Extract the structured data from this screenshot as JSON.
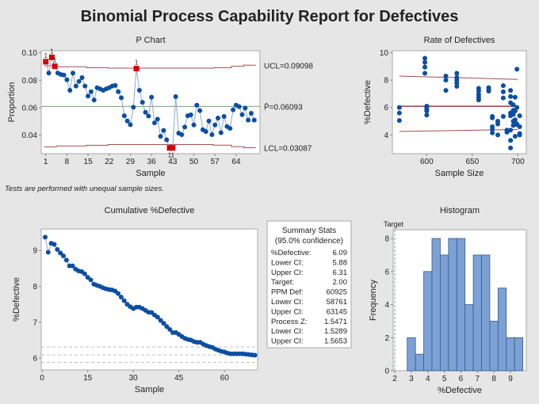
{
  "title": "Binomial Process Capability Report for Defectives",
  "footnote": "Tests are performed with unequal sample sizes.",
  "colors": {
    "point": "#0b4ea2",
    "line": "#8da6d4",
    "out_of_control": "#d40000",
    "limit": "#a05050",
    "center": "#6aa86a",
    "bar": "#7ba1d6",
    "bar_edge": "#3d5a80",
    "dashed": "#c0c0c0"
  },
  "chart_data": [
    {
      "type": "line",
      "title": "P Chart",
      "xlabel": "Sample",
      "ylabel": "Proportion",
      "xticks": [
        1,
        8,
        15,
        22,
        29,
        36,
        43,
        50,
        57,
        64
      ],
      "yticks": [
        "0.04",
        "0.06",
        "0.08",
        "0.10"
      ],
      "xlim": [
        -0.5,
        71.9
      ],
      "ylim": [
        0.0266,
        0.1015
      ],
      "center": 0.06093,
      "center_label": "P̄=0.06093",
      "ucl_label": "UCL=0.09098",
      "lcl_label": "LCL=0.03087",
      "ucl_steps": [
        [
          1,
          0.0905
        ],
        [
          5,
          0.0898
        ],
        [
          15,
          0.0892
        ],
        [
          22,
          0.0888
        ],
        [
          57,
          0.0892
        ],
        [
          63,
          0.0902
        ],
        [
          67,
          0.091
        ]
      ],
      "lcl_steps": [
        [
          1,
          0.0316
        ],
        [
          5,
          0.0322
        ],
        [
          15,
          0.0327
        ],
        [
          22,
          0.0332
        ],
        [
          57,
          0.0328
        ],
        [
          63,
          0.0317
        ],
        [
          67,
          0.0309
        ]
      ],
      "failed_test_marker": "1",
      "flagged_samples": [
        1,
        3,
        4,
        31,
        42,
        43
      ],
      "values": [
        0.0935,
        0.0852,
        0.0967,
        0.0902,
        0.0852,
        0.0842,
        0.0838,
        0.0804,
        0.0727,
        0.0852,
        0.0758,
        0.0792,
        0.0819,
        0.0758,
        0.0685,
        0.0717,
        0.0656,
        0.0746,
        0.0737,
        0.0727,
        0.0737,
        0.0746,
        0.0758,
        0.0762,
        0.0717,
        0.0673,
        0.0542,
        0.0504,
        0.0477,
        0.0604,
        0.0885,
        0.0727,
        0.064,
        0.0567,
        0.054,
        0.0677,
        0.049,
        0.0517,
        0.0392,
        0.0435,
        0.0367,
        0.0308,
        0.0308,
        0.0681,
        0.0415,
        0.0404,
        0.046,
        0.0542,
        0.0548,
        0.0475,
        0.0619,
        0.0579,
        0.044,
        0.0427,
        0.0504,
        0.0404,
        0.0475,
        0.0525,
        0.0419,
        0.0537,
        0.0463,
        0.045,
        0.0585,
        0.0619,
        0.0608,
        0.055,
        0.0598,
        0.051,
        0.056,
        0.051
      ]
    },
    {
      "type": "scatter",
      "title": "Rate of Defectives",
      "xlabel": "Sample Size",
      "ylabel": "%Defective",
      "xticks": [
        600,
        650,
        700
      ],
      "yticks": [
        4,
        6,
        8,
        10
      ],
      "xlim": [
        562.3,
        709.3
      ],
      "ylim": [
        2.63,
        10.15
      ],
      "center": 6.09,
      "upper_limit": [
        [
          570,
          8.3
        ],
        [
          700,
          8.05
        ]
      ],
      "lower_limit": [
        [
          570,
          4.25
        ],
        [
          700,
          4.4
        ]
      ],
      "points": [
        [
          570,
          6.0
        ],
        [
          570,
          5.6
        ],
        [
          570,
          5.05
        ],
        [
          598,
          9.6
        ],
        [
          598,
          9.3
        ],
        [
          598,
          8.95
        ],
        [
          598,
          8.5
        ],
        [
          600,
          6.1
        ],
        [
          600,
          6.0
        ],
        [
          600,
          5.85
        ],
        [
          600,
          5.75
        ],
        [
          600,
          5.45
        ],
        [
          621,
          8.3
        ],
        [
          621,
          8.0
        ],
        [
          621,
          7.25
        ],
        [
          633,
          8.5
        ],
        [
          633,
          8.2
        ],
        [
          633,
          8.0
        ],
        [
          633,
          7.8
        ],
        [
          633,
          7.55
        ],
        [
          657,
          7.4
        ],
        [
          657,
          7.2
        ],
        [
          657,
          6.95
        ],
        [
          657,
          6.75
        ],
        [
          657,
          6.55
        ],
        [
          668,
          7.45
        ],
        [
          668,
          7.3
        ],
        [
          668,
          7.2
        ],
        [
          672,
          5.35
        ],
        [
          672,
          5.25
        ],
        [
          672,
          4.6
        ],
        [
          672,
          4.4
        ],
        [
          672,
          4.15
        ],
        [
          678,
          5.0
        ],
        [
          678,
          4.8
        ],
        [
          678,
          4.0
        ],
        [
          684,
          7.6
        ],
        [
          684,
          7.15
        ],
        [
          684,
          6.7
        ],
        [
          684,
          5.35
        ],
        [
          688,
          4.35
        ],
        [
          688,
          4.2
        ],
        [
          692,
          7.25
        ],
        [
          692,
          6.8
        ],
        [
          692,
          6.35
        ],
        [
          692,
          5.6
        ],
        [
          692,
          5.4
        ],
        [
          692,
          4.35
        ],
        [
          692,
          3.6
        ],
        [
          692,
          3.05
        ],
        [
          695,
          6.2
        ],
        [
          695,
          5.8
        ],
        [
          695,
          5.5
        ],
        [
          695,
          5.0
        ],
        [
          695,
          4.7
        ],
        [
          697,
          6.75
        ],
        [
          697,
          5.75
        ],
        [
          697,
          5.1
        ],
        [
          697,
          4.9
        ],
        [
          697,
          4.85
        ],
        [
          697,
          3.9
        ],
        [
          699,
          8.8
        ],
        [
          699,
          6.0
        ],
        [
          699,
          4.8
        ],
        [
          699,
          4.75
        ],
        [
          702,
          5.4
        ],
        [
          702,
          4.6
        ],
        [
          702,
          4.1
        ],
        [
          702,
          4.0
        ]
      ]
    },
    {
      "type": "line",
      "title": "Cumulative %Defective",
      "xlabel": "Sample",
      "ylabel": "%Defective",
      "xticks": [
        0,
        15,
        30,
        45,
        60
      ],
      "yticks": [
        6,
        7,
        8,
        9
      ],
      "xlim": [
        -0.3,
        70.9
      ],
      "ylim": [
        5.67,
        9.6
      ],
      "reference_lines": [
        6.31,
        6.09,
        5.88
      ],
      "values": [
        9.37,
        8.95,
        9.2,
        9.17,
        9.03,
        8.93,
        8.85,
        8.73,
        8.57,
        8.57,
        8.48,
        8.43,
        8.41,
        8.35,
        8.25,
        8.18,
        8.06,
        8.03,
        8.0,
        7.96,
        7.93,
        7.91,
        7.9,
        7.87,
        7.8,
        7.7,
        7.6,
        7.5,
        7.43,
        7.38,
        7.42,
        7.42,
        7.38,
        7.33,
        7.28,
        7.27,
        7.2,
        7.14,
        7.05,
        6.97,
        6.88,
        6.8,
        6.71,
        6.71,
        6.66,
        6.6,
        6.55,
        6.52,
        6.5,
        6.46,
        6.44,
        6.44,
        6.39,
        6.35,
        6.32,
        6.3,
        6.25,
        6.22,
        6.19,
        6.17,
        6.14,
        6.12,
        6.12,
        6.12,
        6.12,
        6.12,
        6.11,
        6.1,
        6.09,
        6.08
      ]
    },
    {
      "type": "bar",
      "title": "Histogram",
      "xlabel": "%Defective",
      "ylabel": "Frequency",
      "xticks": [
        2,
        3,
        4,
        5,
        6,
        7,
        8,
        9
      ],
      "yticks": [
        0,
        2,
        4,
        6,
        8
      ],
      "xlim": [
        1.9,
        9.96
      ],
      "ylim": [
        0,
        8.53
      ],
      "target": 2,
      "target_label": "Target",
      "bin_start": 2.75,
      "bin_width": 0.5,
      "values": [
        2,
        1,
        6,
        8,
        7,
        8,
        8,
        4,
        7,
        7,
        3,
        5,
        2,
        2
      ]
    }
  ],
  "summary": {
    "title": "Summary Stats",
    "subtitle": "(95.0% confidence)",
    "rows": [
      {
        "label": "%Defective:",
        "value": "6.09"
      },
      {
        "label": "Lower CI:",
        "value": "5.88"
      },
      {
        "label": "Upper CI:",
        "value": "6.31"
      },
      {
        "label": "Target:",
        "value": "2.00"
      },
      {
        "label": "PPM Def:",
        "value": "60925"
      },
      {
        "label": "Lower CI:",
        "value": "58761"
      },
      {
        "label": "Upper CI:",
        "value": "63145"
      },
      {
        "label": "Process Z:",
        "value": "1.5471"
      },
      {
        "label": "Lower CI:",
        "value": "1.5289"
      },
      {
        "label": "Upper CI:",
        "value": "1.5653"
      }
    ]
  }
}
